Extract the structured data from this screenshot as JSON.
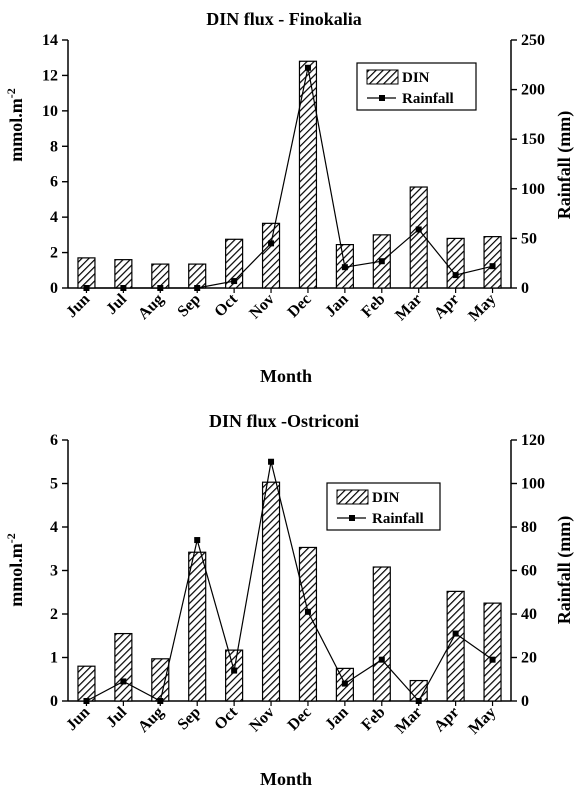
{
  "chart_data": [
    {
      "type": "bar",
      "title": "DIN flux - Finokalia",
      "xlabel": "Month",
      "ylabel": "mmol.m",
      "ylabel_superscript": "-2",
      "y2label": "Rainfall (mm)",
      "categories": [
        "Jun",
        "Jul",
        "Aug",
        "Sep",
        "Oct",
        "Nov",
        "Dec",
        "Jan",
        "Feb",
        "Mar",
        "Apr",
        "May"
      ],
      "ylim": [
        0,
        14
      ],
      "y_ticks": [
        0,
        2,
        4,
        6,
        8,
        10,
        12,
        14
      ],
      "y2lim": [
        0,
        250
      ],
      "y2_ticks": [
        0,
        50,
        100,
        150,
        200,
        250
      ],
      "legend_position": "top-right",
      "series": [
        {
          "name": "DIN",
          "type": "bar",
          "axis": "left",
          "pattern": "diagonal-hatch",
          "values": [
            1.7,
            1.6,
            1.35,
            1.35,
            2.75,
            3.65,
            12.8,
            2.45,
            3.0,
            5.7,
            2.8,
            2.9
          ]
        },
        {
          "name": "Rainfall",
          "type": "line",
          "axis": "right",
          "marker": "square",
          "values": [
            0,
            0,
            0,
            0,
            7,
            45,
            222,
            21,
            27,
            59,
            13,
            22
          ]
        }
      ]
    },
    {
      "type": "bar",
      "title": "DIN flux -Ostriconi",
      "xlabel": "Month",
      "ylabel": "mmol.m",
      "ylabel_superscript": "-2",
      "y2label": "Rainfall (mm)",
      "categories": [
        "Jun",
        "Jul",
        "Aug",
        "Sep",
        "Oct",
        "Nov",
        "Dec",
        "Jan",
        "Feb",
        "Mar",
        "Apr",
        "May"
      ],
      "ylim": [
        0,
        6
      ],
      "y_ticks": [
        0,
        1,
        2,
        3,
        4,
        5,
        6
      ],
      "y2lim": [
        0,
        120
      ],
      "y2_ticks": [
        0,
        20,
        40,
        60,
        80,
        100,
        120
      ],
      "legend_position": "top-right",
      "series": [
        {
          "name": "DIN",
          "type": "bar",
          "axis": "left",
          "pattern": "diagonal-hatch",
          "values": [
            0.8,
            1.55,
            0.97,
            3.42,
            1.17,
            5.03,
            3.53,
            0.75,
            3.08,
            0.47,
            2.52,
            2.25
          ]
        },
        {
          "name": "Rainfall",
          "type": "line",
          "axis": "right",
          "marker": "square",
          "values": [
            0,
            9,
            0,
            74,
            14,
            110,
            41,
            8,
            19,
            0,
            31,
            19
          ]
        }
      ]
    }
  ]
}
